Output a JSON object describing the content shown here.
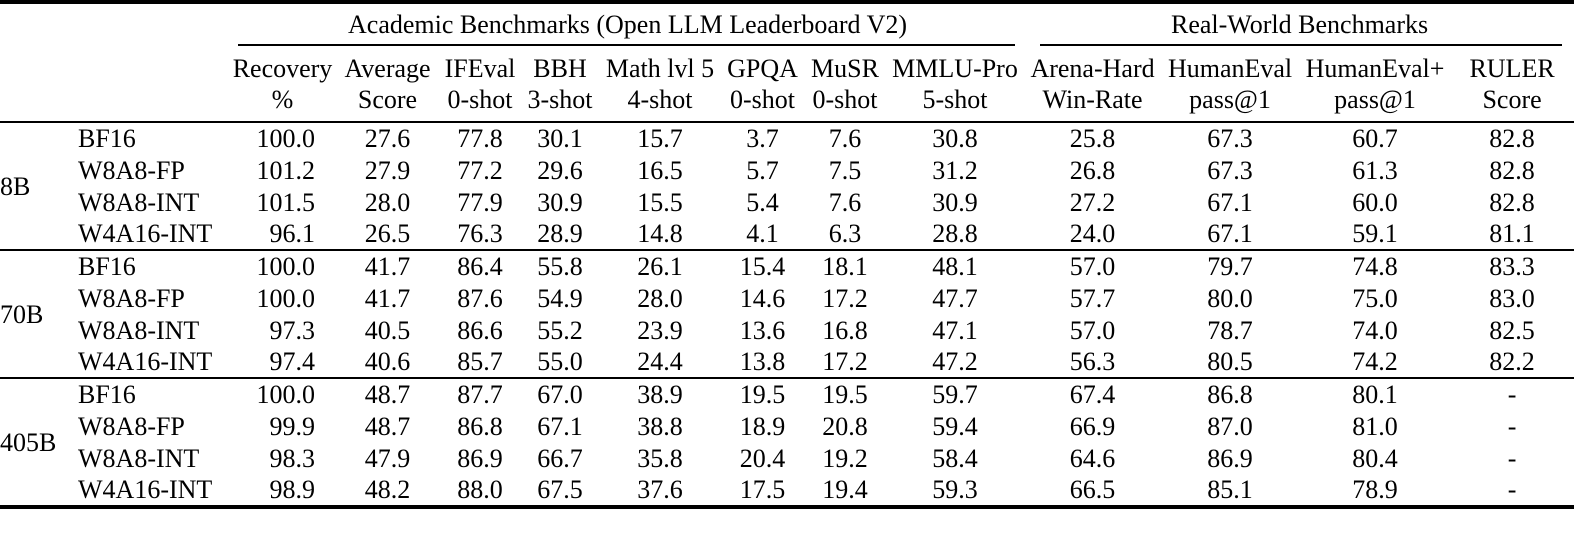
{
  "colors": {
    "text": "#000000",
    "background": "#ffffff",
    "rule": "#000000"
  },
  "table": {
    "group_headers": [
      {
        "label": "Academic Benchmarks (Open LLM Leaderboard V2)"
      },
      {
        "label": "Real-World Benchmarks"
      }
    ],
    "columns": [
      {
        "line1": "Recovery",
        "line2": "%"
      },
      {
        "line1": "Average",
        "line2": "Score"
      },
      {
        "line1": "IFEval",
        "line2": "0-shot"
      },
      {
        "line1": "BBH",
        "line2": "3-shot"
      },
      {
        "line1": "Math lvl 5",
        "line2": "4-shot"
      },
      {
        "line1": "GPQA",
        "line2": "0-shot"
      },
      {
        "line1": "MuSR",
        "line2": "0-shot"
      },
      {
        "line1": "MMLU-Pro",
        "line2": "5-shot"
      },
      {
        "line1": "Arena-Hard",
        "line2": "Win-Rate"
      },
      {
        "line1": "HumanEval",
        "line2": "pass@1"
      },
      {
        "line1": "HumanEval+",
        "line2": "pass@1"
      },
      {
        "line1": "RULER",
        "line2": "Score"
      }
    ],
    "groups": [
      {
        "size": "8B",
        "rows": [
          {
            "scheme": "BF16",
            "values": [
              "100.0",
              "27.6",
              "77.8",
              "30.1",
              "15.7",
              "3.7",
              "7.6",
              "30.8",
              "25.8",
              "67.3",
              "60.7",
              "82.8"
            ]
          },
          {
            "scheme": "W8A8-FP",
            "values": [
              "101.2",
              "27.9",
              "77.2",
              "29.6",
              "16.5",
              "5.7",
              "7.5",
              "31.2",
              "26.8",
              "67.3",
              "61.3",
              "82.8"
            ]
          },
          {
            "scheme": "W8A8-INT",
            "values": [
              "101.5",
              "28.0",
              "77.9",
              "30.9",
              "15.5",
              "5.4",
              "7.6",
              "30.9",
              "27.2",
              "67.1",
              "60.0",
              "82.8"
            ]
          },
          {
            "scheme": "W4A16-INT",
            "values": [
              "96.1",
              "26.5",
              "76.3",
              "28.9",
              "14.8",
              "4.1",
              "6.3",
              "28.8",
              "24.0",
              "67.1",
              "59.1",
              "81.1"
            ]
          }
        ]
      },
      {
        "size": "70B",
        "rows": [
          {
            "scheme": "BF16",
            "values": [
              "100.0",
              "41.7",
              "86.4",
              "55.8",
              "26.1",
              "15.4",
              "18.1",
              "48.1",
              "57.0",
              "79.7",
              "74.8",
              "83.3"
            ]
          },
          {
            "scheme": "W8A8-FP",
            "values": [
              "100.0",
              "41.7",
              "87.6",
              "54.9",
              "28.0",
              "14.6",
              "17.2",
              "47.7",
              "57.7",
              "80.0",
              "75.0",
              "83.0"
            ]
          },
          {
            "scheme": "W8A8-INT",
            "values": [
              "97.3",
              "40.5",
              "86.6",
              "55.2",
              "23.9",
              "13.6",
              "16.8",
              "47.1",
              "57.0",
              "78.7",
              "74.0",
              "82.5"
            ]
          },
          {
            "scheme": "W4A16-INT",
            "values": [
              "97.4",
              "40.6",
              "85.7",
              "55.0",
              "24.4",
              "13.8",
              "17.2",
              "47.2",
              "56.3",
              "80.5",
              "74.2",
              "82.2"
            ]
          }
        ]
      },
      {
        "size": "405B",
        "rows": [
          {
            "scheme": "BF16",
            "values": [
              "100.0",
              "48.7",
              "87.7",
              "67.0",
              "38.9",
              "19.5",
              "19.5",
              "59.7",
              "67.4",
              "86.8",
              "80.1",
              "-"
            ]
          },
          {
            "scheme": "W8A8-FP",
            "values": [
              "99.9",
              "48.7",
              "86.8",
              "67.1",
              "38.8",
              "18.9",
              "20.8",
              "59.4",
              "66.9",
              "87.0",
              "81.0",
              "-"
            ]
          },
          {
            "scheme": "W8A8-INT",
            "values": [
              "98.3",
              "47.9",
              "86.9",
              "66.7",
              "35.8",
              "20.4",
              "19.2",
              "58.4",
              "64.6",
              "86.9",
              "80.4",
              "-"
            ]
          },
          {
            "scheme": "W4A16-INT",
            "values": [
              "98.9",
              "48.2",
              "88.0",
              "67.5",
              "37.6",
              "17.5",
              "19.4",
              "59.3",
              "66.5",
              "85.1",
              "78.9",
              "-"
            ]
          }
        ]
      }
    ]
  }
}
